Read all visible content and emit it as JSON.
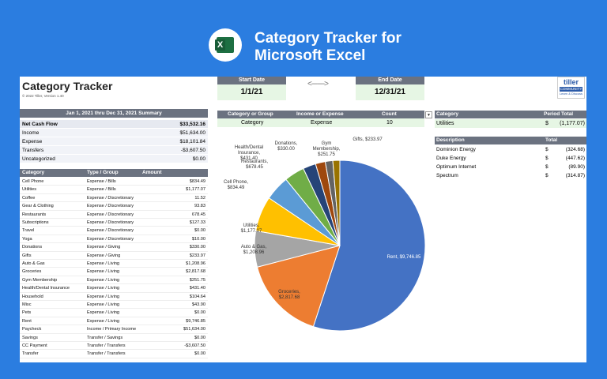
{
  "banner": {
    "title_line1": "Category Tracker for",
    "title_line2": "Microsoft Excel",
    "logo_letter": "X"
  },
  "sheet": {
    "title": "Category Tracker",
    "copyright": "© 2022 Tiller, Version 1.40",
    "start_date_label": "Start Date",
    "start_date": "1/1/21",
    "end_date_label": "End Date",
    "end_date": "12/31/21",
    "arrow": "<------->",
    "tiller_logo": "tiller",
    "tiller_community": "COMMUNITY",
    "tiller_tagline": "Learn & Discuss"
  },
  "summary": {
    "header": "Jan 1, 2021 thru Dec 31, 2021 Summary",
    "rows": [
      {
        "label": "Net Cash Flow",
        "value": "$33,532.16",
        "bold": true
      },
      {
        "label": "Income",
        "value": "$51,634.00"
      },
      {
        "label": "Expense",
        "value": "$18,101.84"
      },
      {
        "label": "Transfers",
        "value": "-$3,607.50"
      },
      {
        "label": "Uncategorized",
        "value": "$0.00"
      }
    ]
  },
  "categories": {
    "headers": {
      "category": "Category",
      "type": "Type / Group",
      "amount": "Amount"
    },
    "rows": [
      {
        "category": "Cell Phone",
        "type": "Expense / Bills",
        "amount": "$834.49"
      },
      {
        "category": "Utilities",
        "type": "Expense / Bills",
        "amount": "$1,177.07"
      },
      {
        "category": "Coffee",
        "type": "Expense / Discretionary",
        "amount": "11.52"
      },
      {
        "category": "Gear & Clothing",
        "type": "Expense / Discretionary",
        "amount": "93.83"
      },
      {
        "category": "Restaurants",
        "type": "Expense / Discretionary",
        "amount": "678.45"
      },
      {
        "category": "Subscriptions",
        "type": "Expense / Discretionary",
        "amount": "$127.33"
      },
      {
        "category": "Travel",
        "type": "Expense / Discretionary",
        "amount": "$0.00"
      },
      {
        "category": "Yoga",
        "type": "Expense / Discretionary",
        "amount": "$10.00"
      },
      {
        "category": "Donations",
        "type": "Expense / Giving",
        "amount": "$330.00"
      },
      {
        "category": "Gifts",
        "type": "Expense / Giving",
        "amount": "$233.97"
      },
      {
        "category": "Auto & Gas",
        "type": "Expense / Living",
        "amount": "$1,208.96"
      },
      {
        "category": "Groceries",
        "type": "Expense / Living",
        "amount": "$2,817.68"
      },
      {
        "category": "Gym Membership",
        "type": "Expense / Living",
        "amount": "$251.75"
      },
      {
        "category": "Health/Dental Insurance",
        "type": "Expense / Living",
        "amount": "$431.40"
      },
      {
        "category": "Household",
        "type": "Expense / Living",
        "amount": "$104.64"
      },
      {
        "category": "Misc",
        "type": "Expense / Living",
        "amount": "$43.90"
      },
      {
        "category": "Pets",
        "type": "Expense / Living",
        "amount": "$0.00"
      },
      {
        "category": "Rent",
        "type": "Expense / Living",
        "amount": "$9,746.85"
      },
      {
        "category": "Paycheck",
        "type": "Income / Primary Income",
        "amount": "$51,634.00"
      },
      {
        "category": "Savings",
        "type": "Transfer / Savings",
        "amount": "$0.00"
      },
      {
        "category": "CC Payment",
        "type": "Transfer / Transfers",
        "amount": "-$3,607.50"
      },
      {
        "category": "Transfer",
        "type": "Transfer / Transfers",
        "amount": "$0.00"
      }
    ]
  },
  "selector": {
    "headers": {
      "group": "Category or Group",
      "ie": "Income or Expense",
      "count": "Count"
    },
    "row": {
      "group": "Category",
      "ie": "Expense",
      "count": "10"
    },
    "filter_icon": "▼"
  },
  "period": {
    "headers": {
      "category": "Category",
      "total": "Period Total"
    },
    "row": {
      "category": "Utilities",
      "currency": "$",
      "total": "(1,177.07)"
    }
  },
  "descriptions": {
    "headers": {
      "description": "Description",
      "total": "Total"
    },
    "rows": [
      {
        "description": "Dominion Energy",
        "currency": "$",
        "total": "(324.68)"
      },
      {
        "description": "Duke Energy",
        "currency": "$",
        "total": "(447.62)"
      },
      {
        "description": "Optimum Internet",
        "currency": "$",
        "total": "(89.90)"
      },
      {
        "description": "Spectrum",
        "currency": "$",
        "total": "(314.87)"
      }
    ]
  },
  "chart_data": {
    "type": "pie",
    "slices": [
      {
        "label": "Rent, $9,746.85",
        "value": 9746.85,
        "color": "#4472c4"
      },
      {
        "label": "Groceries, $2,817.68",
        "value": 2817.68,
        "color": "#ed7d31"
      },
      {
        "label": "Auto & Gas, $1,208.96",
        "value": 1208.96,
        "color": "#a5a5a5"
      },
      {
        "label": "Utilities, $1,177.07",
        "value": 1177.07,
        "color": "#ffc000"
      },
      {
        "label": "Cell Phone, $834.49",
        "value": 834.49,
        "color": "#5b9bd5"
      },
      {
        "label": "Restaurants, $678.45",
        "value": 678.45,
        "color": "#70ad47"
      },
      {
        "label": "Health/Dental Insurance, $431.40",
        "value": 431.4,
        "color": "#264478"
      },
      {
        "label": "Donations, $330.00",
        "value": 330.0,
        "color": "#9e480e"
      },
      {
        "label": "Gym Membership, $251.75",
        "value": 251.75,
        "color": "#636363"
      },
      {
        "label": "Gifts, $233.97",
        "value": 233.97,
        "color": "#997300"
      }
    ]
  }
}
